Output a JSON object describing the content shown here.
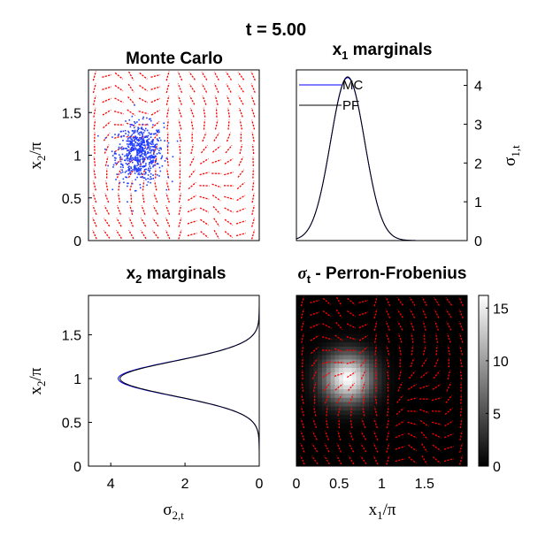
{
  "figure_title": "t = 5.00",
  "colors": {
    "mc": "#0000ff",
    "pf": "#000000",
    "arrows": "#ff0000",
    "dots": "#1f3cff"
  },
  "chart_data": [
    {
      "id": "monte-carlo",
      "type": "scatter",
      "title": "Monte Carlo",
      "ylabel": "x2/π",
      "xlim": [
        0,
        2
      ],
      "ylim": [
        0,
        2
      ],
      "yticks": [
        "0",
        "0.5",
        "1",
        "1.5"
      ],
      "grid": false,
      "overlay": "red quiver field",
      "cloud": {
        "center": [
          0.6,
          1.03
        ],
        "spread": [
          0.14,
          0.17
        ],
        "count": 600
      }
    },
    {
      "id": "x1-marginals",
      "type": "line",
      "title": "x1 marginals",
      "ylabel": "σ1,t",
      "ylabel_side": "right",
      "xlim": [
        0,
        2
      ],
      "ylim": [
        0,
        4.4
      ],
      "yticks": [
        "0",
        "1",
        "2",
        "3",
        "4"
      ],
      "legend_position": "top-left",
      "series": [
        {
          "name": "MC",
          "peak_x": 0.6,
          "peak_y": 4.2,
          "width": 0.2
        },
        {
          "name": "PF",
          "peak_x": 0.6,
          "peak_y": 4.22,
          "width": 0.2
        }
      ]
    },
    {
      "id": "x2-marginals",
      "type": "line",
      "title": "x2 marginals",
      "xlabel": "σ2,t",
      "ylabel": "x2/π",
      "xlim": [
        4.6,
        0
      ],
      "ylim": [
        0,
        1.95
      ],
      "xticks": [
        "4",
        "2",
        "0"
      ],
      "yticks": [
        "0",
        "0.5",
        "1",
        "1.5"
      ],
      "series": [
        {
          "name": "MC",
          "peak_x": 3.8,
          "peak_y": 1.0,
          "width": 0.2
        },
        {
          "name": "PF",
          "peak_x": 3.75,
          "peak_y": 1.0,
          "width": 0.2
        }
      ]
    },
    {
      "id": "perron-frobenius",
      "type": "heatmap",
      "title": "σt - Perron-Frobenius",
      "xlabel": "x1/π",
      "xlim": [
        0,
        2
      ],
      "ylim": [
        0,
        2
      ],
      "xticks": [
        "0",
        "0.5",
        "1",
        "1.5"
      ],
      "colorbar": {
        "min": 0,
        "max": 16.2,
        "ticks": [
          "0",
          "5",
          "10",
          "15"
        ]
      },
      "density": {
        "center": [
          0.6,
          1.03
        ],
        "spread": [
          0.2,
          0.2
        ],
        "peak": 16
      },
      "overlay": "red quiver field"
    }
  ]
}
